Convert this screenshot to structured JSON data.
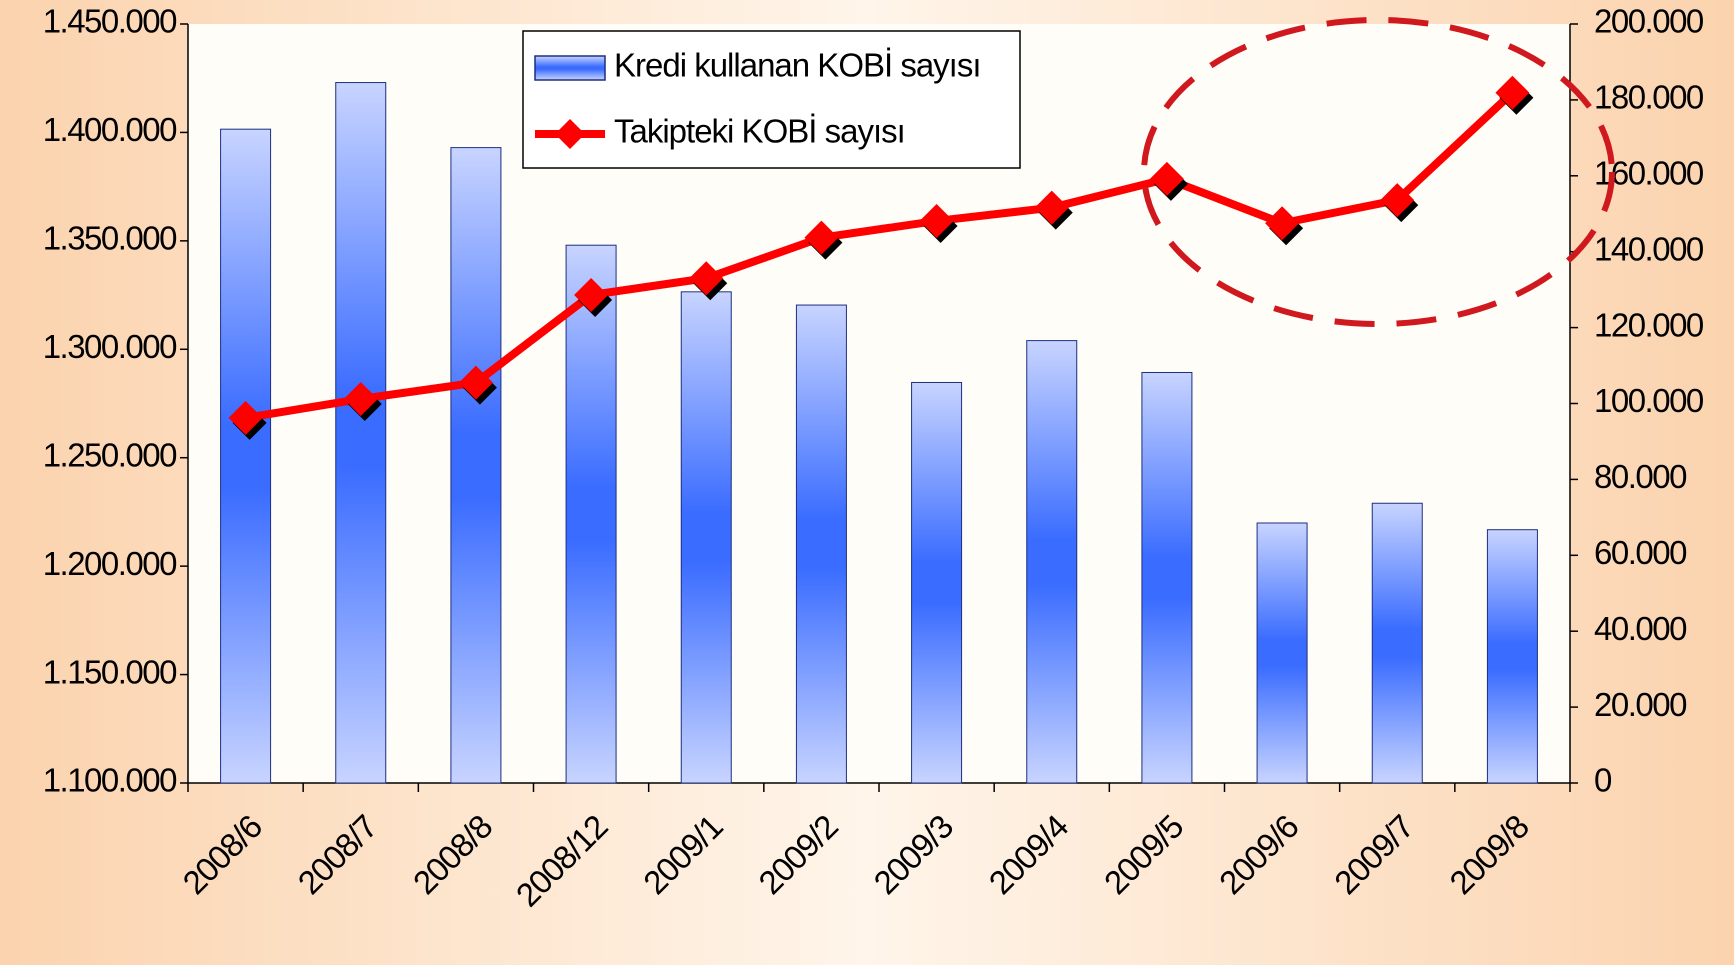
{
  "chart_data": {
    "type": "bar",
    "categories": [
      "2008/6",
      "2008/7",
      "2008/8",
      "2008/12",
      "2009/1",
      "2009/2",
      "2009/3",
      "2009/4",
      "2009/5",
      "2009/6",
      "2009/7",
      "2009/8"
    ],
    "series": [
      {
        "name": "Kredi kullanan KOBİ sayısı",
        "type": "bar",
        "color": "#3366ff",
        "values": [
          1401500,
          1423000,
          1393000,
          1348000,
          1326500,
          1320400,
          1284700,
          1304000,
          1289300,
          1219900,
          1229000,
          1216800
        ]
      },
      {
        "name": "Takipteki KOBİ sayısı",
        "type": "line",
        "axis": "y2",
        "color": "#ff0000",
        "values": [
          96200,
          101200,
          105500,
          128600,
          133000,
          143700,
          148100,
          151600,
          159200,
          147500,
          153600,
          181900
        ]
      }
    ],
    "ylim": [
      1100000,
      1450000
    ],
    "yticks": [
      {
        "value": 1100000,
        "label": "1.100.000"
      },
      {
        "value": 1150000,
        "label": "1.150.000"
      },
      {
        "value": 1200000,
        "label": "1.200.000"
      },
      {
        "value": 1250000,
        "label": "1.250.000"
      },
      {
        "value": 1300000,
        "label": "1.300.000"
      },
      {
        "value": 1350000,
        "label": "1.350.000"
      },
      {
        "value": 1400000,
        "label": "1.400.000"
      },
      {
        "value": 1450000,
        "label": "1.450.000"
      }
    ],
    "y2lim": [
      0,
      200000
    ],
    "y2ticks": [
      0,
      {
        "value": 20000,
        "label": "20.000"
      },
      {
        "value": 40000,
        "label": "40.000"
      },
      {
        "value": 60000,
        "label": "60.000"
      },
      {
        "value": 80000,
        "label": "80.000"
      },
      {
        "value": 100000,
        "label": "100.000"
      },
      {
        "value": 120000,
        "label": "120.000"
      },
      {
        "value": 140000,
        "label": "140.000"
      },
      {
        "value": 160000,
        "label": "160.000"
      },
      {
        "value": 180000,
        "label": "180.000"
      },
      {
        "value": 200000,
        "label": "200.000"
      }
    ],
    "legend": "top"
  }
}
